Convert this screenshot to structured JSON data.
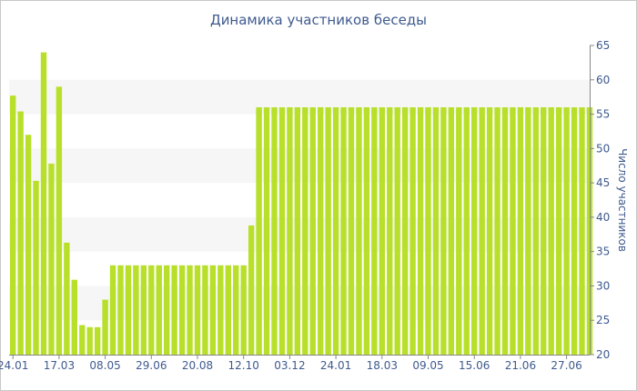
{
  "chart_data": {
    "type": "bar",
    "title": "Динамика участников беседы",
    "ylabel": "Число участников",
    "xlabel": "",
    "ylim": [
      20,
      65
    ],
    "yticks": [
      20,
      25,
      30,
      35,
      40,
      45,
      50,
      55,
      60,
      65
    ],
    "xtick_labels": [
      "24.01",
      "17.03",
      "08.05",
      "29.06",
      "20.08",
      "12.10",
      "03.12",
      "24.01",
      "18.03",
      "09.05",
      "15.06",
      "21.06",
      "27.06"
    ],
    "xtick_bar_index": [
      0,
      6,
      12,
      18,
      24,
      30,
      36,
      42,
      48,
      54,
      60,
      66,
      72
    ],
    "colors": {
      "bar": "#b8e02a",
      "axis": "#3e5a8e",
      "band": "#f6f6f6"
    },
    "values": [
      57.7,
      55.4,
      52.0,
      45.3,
      64.0,
      47.8,
      59.0,
      36.3,
      30.9,
      24.3,
      24.0,
      24.0,
      28.0,
      33.0,
      33.0,
      33.0,
      33.0,
      33.0,
      33.0,
      33.0,
      33.0,
      33.0,
      33.0,
      33.0,
      33.0,
      33.0,
      33.0,
      33.0,
      33.0,
      33.0,
      33.0,
      38.8,
      56.0,
      56.0,
      56.0,
      56.0,
      56.0,
      56.0,
      56.0,
      56.0,
      56.0,
      56.0,
      56.0,
      56.0,
      56.0,
      56.0,
      56.0,
      56.0,
      56.0,
      56.0,
      56.0,
      56.0,
      56.0,
      56.0,
      56.0,
      56.0,
      56.0,
      56.0,
      56.0,
      56.0,
      56.0,
      56.0,
      56.0,
      56.0,
      56.0,
      56.0,
      56.0,
      56.0,
      56.0,
      56.0,
      56.0,
      56.0,
      56.0,
      56.0,
      56.0,
      56.0
    ]
  }
}
